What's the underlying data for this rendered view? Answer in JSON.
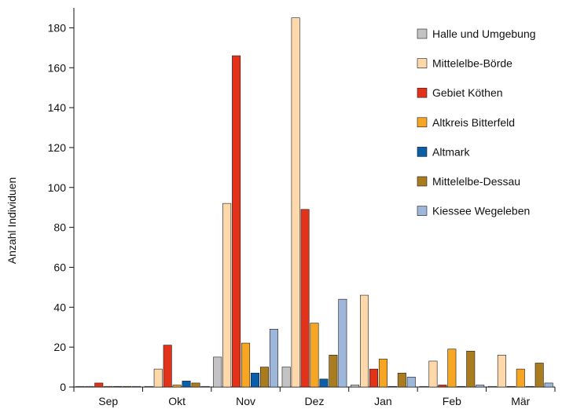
{
  "chart_data": {
    "type": "bar",
    "title": "",
    "xlabel": "",
    "ylabel": "Anzahl Individuen",
    "ylim": [
      0,
      190
    ],
    "yticks": [
      0,
      20,
      40,
      60,
      80,
      100,
      120,
      140,
      160,
      180
    ],
    "grid": false,
    "legend_position": "top-right",
    "categories": [
      "Sep",
      "Okt",
      "Nov",
      "Dez",
      "Jan",
      "Feb",
      "Mär"
    ],
    "series": [
      {
        "name": "Halle und Umgebung",
        "color": "#c3c3c3",
        "values": [
          0,
          0,
          15,
          10,
          1,
          0,
          0
        ]
      },
      {
        "name": "Mittelelbe-Börde",
        "color": "#fdd8aa",
        "values": [
          0,
          9,
          92,
          185,
          46,
          13,
          16
        ]
      },
      {
        "name": "Gebiet Köthen",
        "color": "#e2331a",
        "values": [
          2,
          21,
          166,
          89,
          9,
          1,
          0
        ]
      },
      {
        "name": "Altkreis Bitterfeld",
        "color": "#f6a623",
        "values": [
          0,
          1,
          22,
          32,
          14,
          19,
          9
        ]
      },
      {
        "name": "Altmark",
        "color": "#0b5ea8",
        "values": [
          0,
          3,
          7,
          4,
          0,
          0,
          0
        ]
      },
      {
        "name": "Mittelelbe-Dessau",
        "color": "#a97c1f",
        "values": [
          0,
          2,
          10,
          16,
          7,
          18,
          12
        ]
      },
      {
        "name": "Kiessee Wegeleben",
        "color": "#9db6d9",
        "values": [
          0,
          0,
          29,
          44,
          5,
          1,
          2
        ]
      }
    ]
  }
}
